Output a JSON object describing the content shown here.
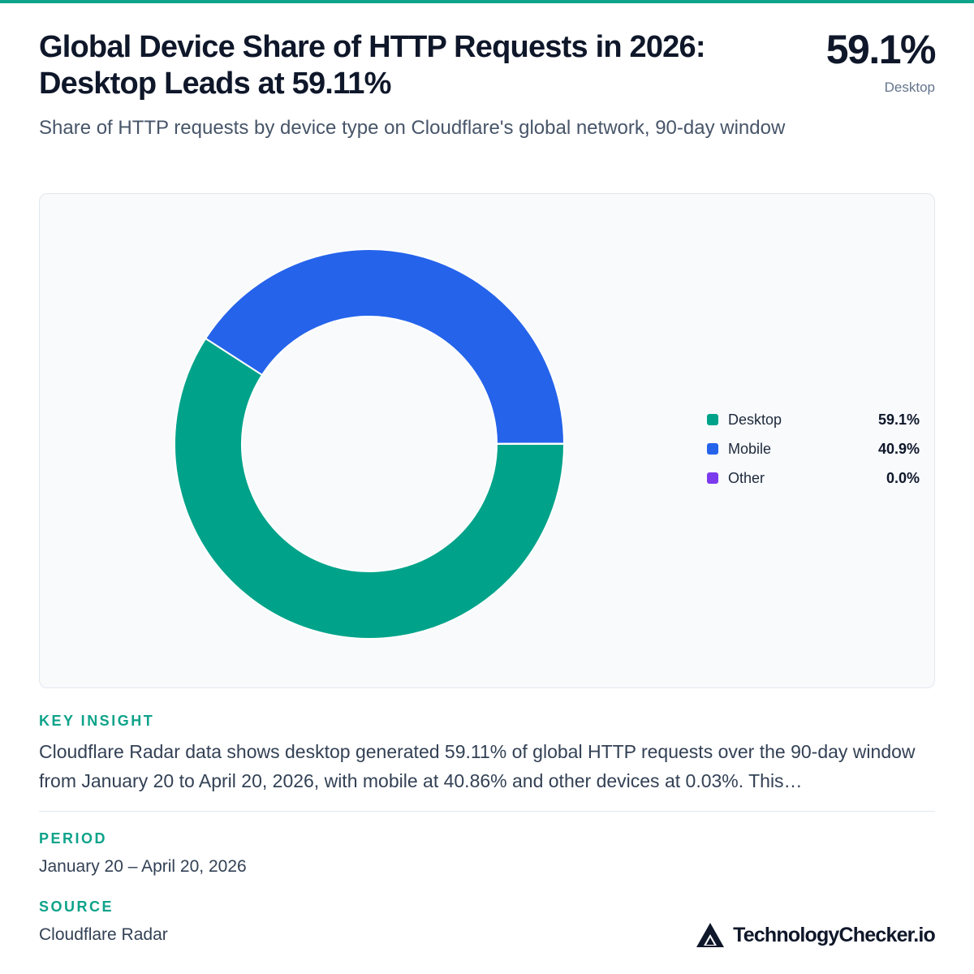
{
  "colors": {
    "accent": "#0ea38a",
    "desktop": "#00a38a",
    "mobile": "#2563eb",
    "other": "#7c3aed"
  },
  "header": {
    "title_line1": "Global Device Share of HTTP Requests in 2026:",
    "title_line2": "Desktop Leads at 59.11%",
    "subtitle": "Share of HTTP requests by device type on Cloudflare's global network, 90-day window",
    "headline_value": "59.1%",
    "headline_label": "Desktop"
  },
  "chart_data": {
    "type": "pie",
    "title": "",
    "categories": [
      "Desktop",
      "Mobile",
      "Other"
    ],
    "values": [
      59.11,
      40.86,
      0.03
    ],
    "value_labels": [
      "59.1%",
      "40.9%",
      "0.0%"
    ],
    "colors": [
      "#00a38a",
      "#2563eb",
      "#7c3aed"
    ],
    "donut": true,
    "legend": "right"
  },
  "insight": {
    "label": "KEY INSIGHT",
    "text": "Cloudflare Radar data shows desktop generated 59.11% of global HTTP requests over the 90-day window from January 20 to April 20, 2026, with mobile at 40.86% and other devices at 0.03%. This…"
  },
  "period": {
    "label": "PERIOD",
    "value": "January 20 – April 20, 2026"
  },
  "source": {
    "label": "SOURCE",
    "value": "Cloudflare Radar"
  },
  "brand": {
    "name": "TechnologyChecker.io",
    "icon": "triangle-logo-icon"
  }
}
